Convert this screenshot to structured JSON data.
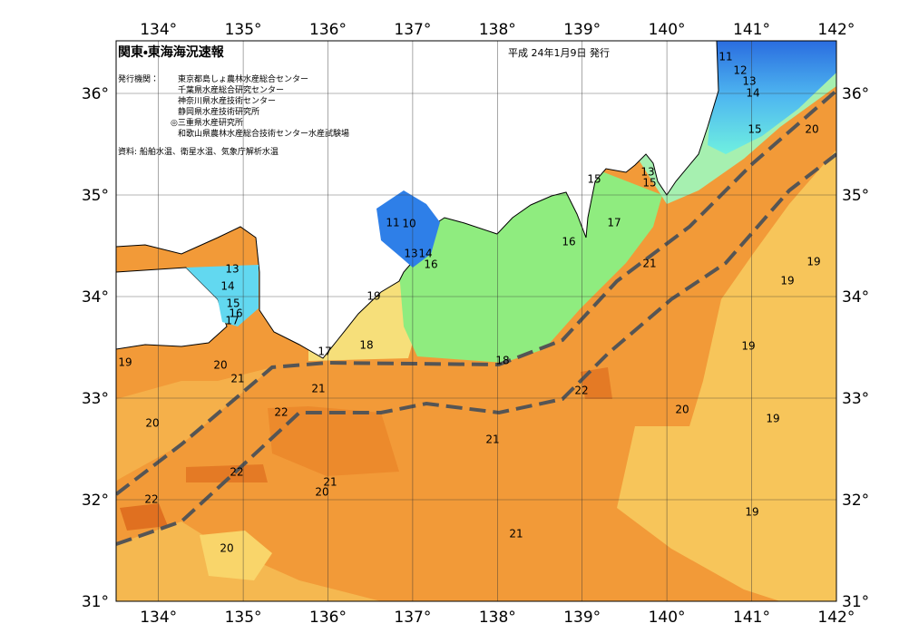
{
  "header": {
    "title": "関東・東海海況速報",
    "date": "平成 24年1月9日 発行"
  },
  "publisher": {
    "label": "発行機関：",
    "institutions": [
      "東京都島しょ農林水産総合センター",
      "千葉県水産総合研究センター",
      "神奈川県水産技術センター",
      "静岡県水産技術研究所",
      "◎三重県水産研究所",
      "和歌山県農林水産総合技術センター水産試験場"
    ]
  },
  "source": "資料: 船舶水温、衛星水温、気象庁解析水温",
  "map": {
    "lon_ticks": [
      {
        "value": 134,
        "label": "134°"
      },
      {
        "value": 135,
        "label": "135°"
      },
      {
        "value": 136,
        "label": "136°"
      },
      {
        "value": 137,
        "label": "137°"
      },
      {
        "value": 138,
        "label": "138°"
      },
      {
        "value": 139,
        "label": "139°"
      },
      {
        "value": 140,
        "label": "140°"
      },
      {
        "value": 141,
        "label": "141°"
      },
      {
        "value": 142,
        "label": "142°"
      }
    ],
    "lat_ticks": [
      {
        "value": 31,
        "label": "31°"
      },
      {
        "value": 32,
        "label": "32°"
      },
      {
        "value": 33,
        "label": "33°"
      },
      {
        "value": 34,
        "label": "34°"
      },
      {
        "value": 35,
        "label": "35°"
      },
      {
        "value": 36,
        "label": "36°"
      }
    ],
    "contour_labels": [
      "11",
      "12",
      "13",
      "14",
      "15",
      "20",
      "13",
      "15",
      "15",
      "17",
      "16",
      "21",
      "19",
      "19",
      "11",
      "10",
      "13",
      "14",
      "16",
      "13",
      "14",
      "15",
      "16",
      "17",
      "19",
      "18",
      "17",
      "18",
      "19",
      "20",
      "21",
      "21",
      "22",
      "19",
      "20",
      "19",
      "22",
      "20",
      "21",
      "22",
      "21",
      "20",
      "22",
      "19",
      "21",
      "20"
    ]
  }
}
